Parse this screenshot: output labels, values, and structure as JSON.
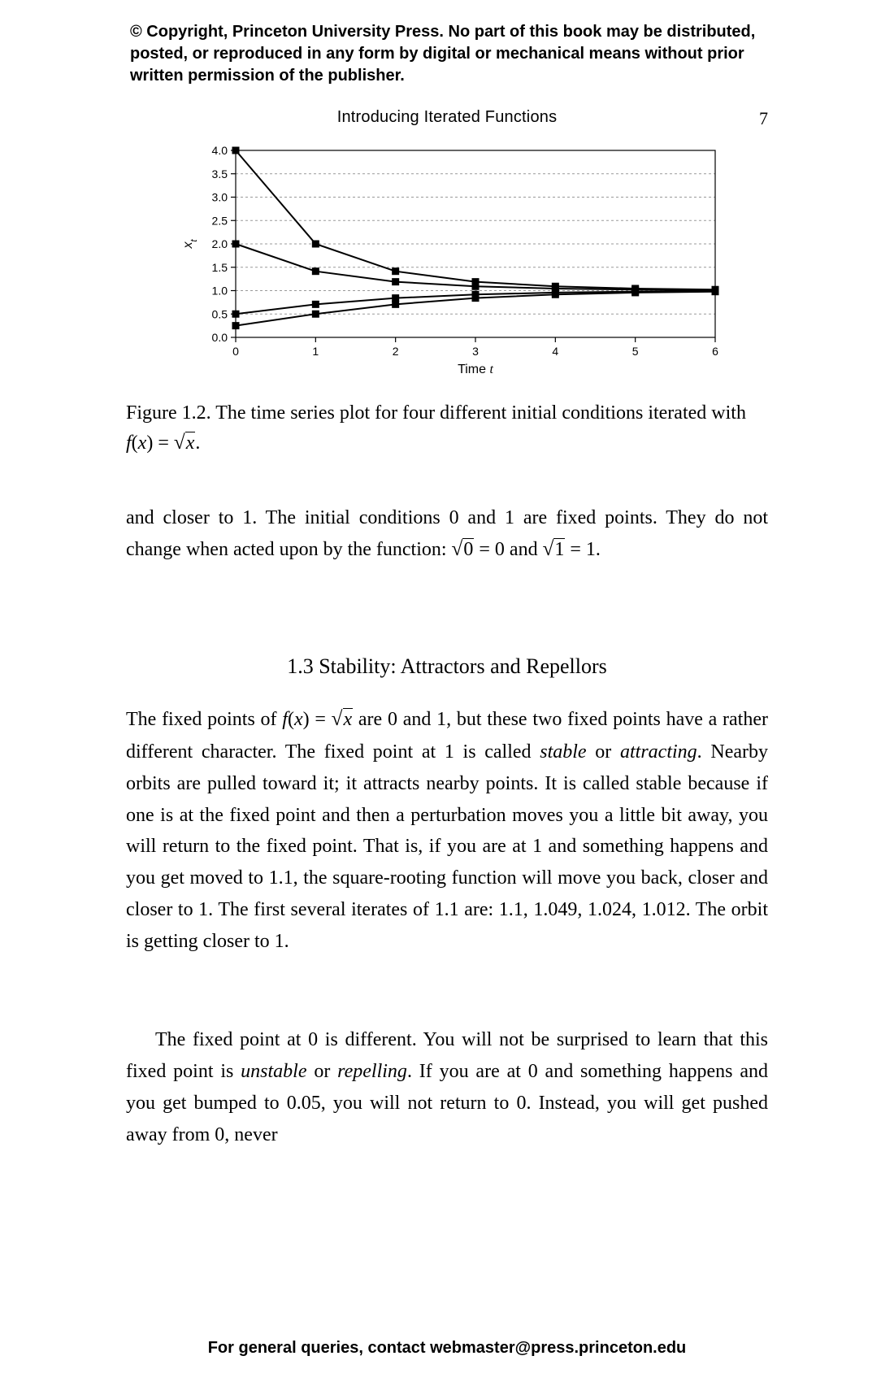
{
  "copyright": "© Copyright, Princeton University Press. No part of this book may be distributed, posted, or reproduced in any form by digital or mechanical means without prior written permission of the publisher.",
  "running_head": "Introducing Iterated Functions",
  "page_number": "7",
  "figure": {
    "type": "line",
    "xlabel_prefix": "Time ",
    "xlabel_var": "t",
    "ylabel": "x",
    "ylabel_sub": "t",
    "xlim": [
      0,
      6
    ],
    "ylim": [
      0.0,
      4.0
    ],
    "xticks": [
      0,
      1,
      2,
      3,
      4,
      5,
      6
    ],
    "yticks": [
      0.0,
      0.5,
      1.0,
      1.5,
      2.0,
      2.5,
      3.0,
      3.5,
      4.0
    ],
    "ytick_labels": [
      "0.0",
      "0.5",
      "1.0",
      "1.5",
      "2.0",
      "2.5",
      "3.0",
      "3.5",
      "4.0"
    ],
    "line_color": "#000000",
    "line_width": 2.0,
    "marker": "square",
    "marker_size": 8,
    "marker_fill": "#000000",
    "border_color": "#000000",
    "border_width": 1.2,
    "grid_color": "#9a9a9a",
    "grid_dash": "3,3",
    "axis_fontsize": 14,
    "label_fontsize": 16,
    "background_color": "#ffffff",
    "series": [
      {
        "x": [
          0,
          1,
          2,
          3,
          4,
          5,
          6
        ],
        "y": [
          4.0,
          2.0,
          1.414,
          1.189,
          1.091,
          1.044,
          1.022
        ]
      },
      {
        "x": [
          0,
          1,
          2,
          3,
          4,
          5,
          6
        ],
        "y": [
          2.0,
          1.414,
          1.189,
          1.091,
          1.044,
          1.022,
          1.011
        ]
      },
      {
        "x": [
          0,
          1,
          2,
          3,
          4,
          5,
          6
        ],
        "y": [
          0.5,
          0.707,
          0.841,
          0.917,
          0.958,
          0.979,
          0.989
        ]
      },
      {
        "x": [
          0,
          1,
          2,
          3,
          4,
          5,
          6
        ],
        "y": [
          0.25,
          0.5,
          0.707,
          0.841,
          0.917,
          0.958,
          0.979
        ]
      }
    ]
  },
  "caption_lead": "Figure 1.2. The time series plot for four different initial conditions iterated with ",
  "caption_fx": "f",
  "caption_x": "x",
  "caption_eq": " = ",
  "caption_sqrt_arg": "x",
  "caption_tail": ".",
  "para_a_1": "and closer to 1. The initial conditions 0 and 1 are fixed points. They do not change when acted upon by the function: ",
  "sqrt0_arg": "0",
  "para_a_eq0": " = 0 and ",
  "sqrt1_arg": "1",
  "para_a_eq1": " = 1.",
  "section_title": "1.3 Stability: Attractors and Repellors",
  "para_b_1": "The fixed points of ",
  "para_b_fx": "f",
  "para_b_x": "x",
  "para_b_eq": " = ",
  "para_b_sqrt_arg": "x",
  "para_b_2": " are 0 and 1, but these two fixed points have a rather different character. The fixed point at 1 is called ",
  "em_stable": "stable",
  "para_b_or": " or ",
  "em_attracting": "attracting",
  "para_b_3": ". Nearby orbits are pulled toward it; it attracts nearby points. It is called stable because if one is at the fixed point and then a perturbation moves you a little bit away, you will return to the fixed point. That is, if you are at 1 and something happens and you get moved to 1.1, the square-rooting function will move you back, closer and closer to 1. The first several iterates of 1.1 are: 1.1, 1.049, 1.024, 1.012. The orbit is getting closer to 1.",
  "para_c_1": "The fixed point at 0 is different. You will not be surprised to learn that this fixed point is ",
  "em_unstable": "unstable",
  "para_c_or": " or ",
  "em_repelling": "repelling",
  "para_c_2": ". If you are at 0 and something happens and you get bumped to 0.05, you will not return to 0. Instead, you will get pushed away from 0, never",
  "footer": "For general queries, contact webmaster@press.princeton.edu"
}
